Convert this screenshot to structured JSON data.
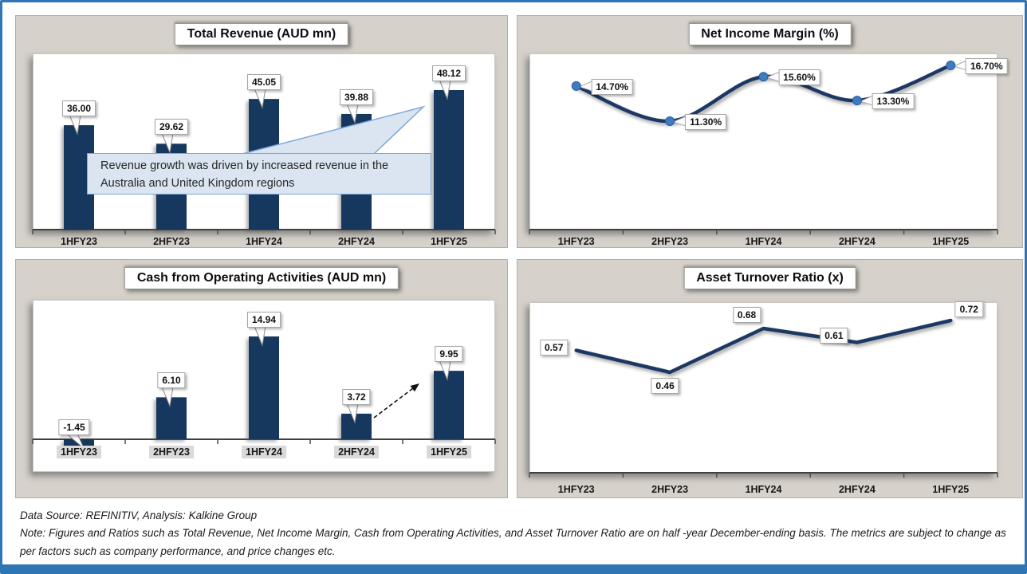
{
  "page": {
    "accent_color": "#2E75B6",
    "panel_bg": "#D6D2CB",
    "bar_color": "#17375E",
    "line_color": "#1F3864",
    "marker_color": "#3E7BBF",
    "callout_fill": "#DBE5F1",
    "callout_border": "#7DA7D9"
  },
  "footer": {
    "source": "Data Source: REFINITIV, Analysis: Kalkine Group",
    "note": "Note: Figures and Ratios such as Total Revenue, Net Income Margin, Cash from Operating Activities, and Asset Turnover Ratio are on half -year December-ending basis. The metrics are subject to change as per factors such as company performance, and price changes etc."
  },
  "chart_data": [
    {
      "type": "bar",
      "title": "Total Revenue (AUD mn)",
      "categories": [
        "1HFY23",
        "2HFY23",
        "1HFY24",
        "2HFY24",
        "1HFY25"
      ],
      "values": [
        36.0,
        29.62,
        45.05,
        39.88,
        48.12
      ],
      "point_labels": [
        "36.00",
        "29.62",
        "45.05",
        "39.88",
        "48.12"
      ],
      "ylim": [
        0,
        55
      ],
      "grid": false,
      "legend": "none",
      "annotations": {
        "callout_text": "Revenue growth was driven by increased revenue in the Australia and United Kingdom regions"
      }
    },
    {
      "type": "line",
      "title": "Net Income Margin (%)",
      "categories": [
        "1HFY23",
        "2HFY23",
        "1HFY24",
        "2HFY24",
        "1HFY25"
      ],
      "values": [
        14.7,
        11.3,
        15.6,
        13.3,
        16.7
      ],
      "point_labels": [
        "14.70%",
        "11.30%",
        "15.60%",
        "13.30%",
        "16.70%"
      ],
      "ylim": [
        10,
        18
      ],
      "smooth": true,
      "markers": true,
      "grid": false,
      "legend": "none"
    },
    {
      "type": "bar",
      "title": "Cash from Operating Activities (AUD mn)",
      "categories": [
        "1HFY23",
        "2HFY23",
        "1HFY24",
        "2HFY24",
        "1HFY25"
      ],
      "values": [
        -1.45,
        6.1,
        14.94,
        3.72,
        9.95
      ],
      "point_labels": [
        "-1.45",
        "6.10",
        "14.94",
        "3.72",
        "9.95"
      ],
      "ylim": [
        -3,
        18
      ],
      "grid": false,
      "legend": "none",
      "annotations": {
        "trend_arrow": "dashed arrow pointing up from 2HFY24 toward 1HFY25 bar"
      }
    },
    {
      "type": "line",
      "title": "Asset Turnover Ratio (x)",
      "categories": [
        "1HFY23",
        "2HFY23",
        "1HFY24",
        "2HFY24",
        "1HFY25"
      ],
      "values": [
        0.57,
        0.46,
        0.68,
        0.61,
        0.72
      ],
      "point_labels": [
        "0.57",
        "0.46",
        "0.68",
        "0.61",
        "0.72"
      ],
      "ylim": [
        0,
        0.8
      ],
      "smooth": false,
      "markers": false,
      "grid": false,
      "legend": "none"
    }
  ]
}
